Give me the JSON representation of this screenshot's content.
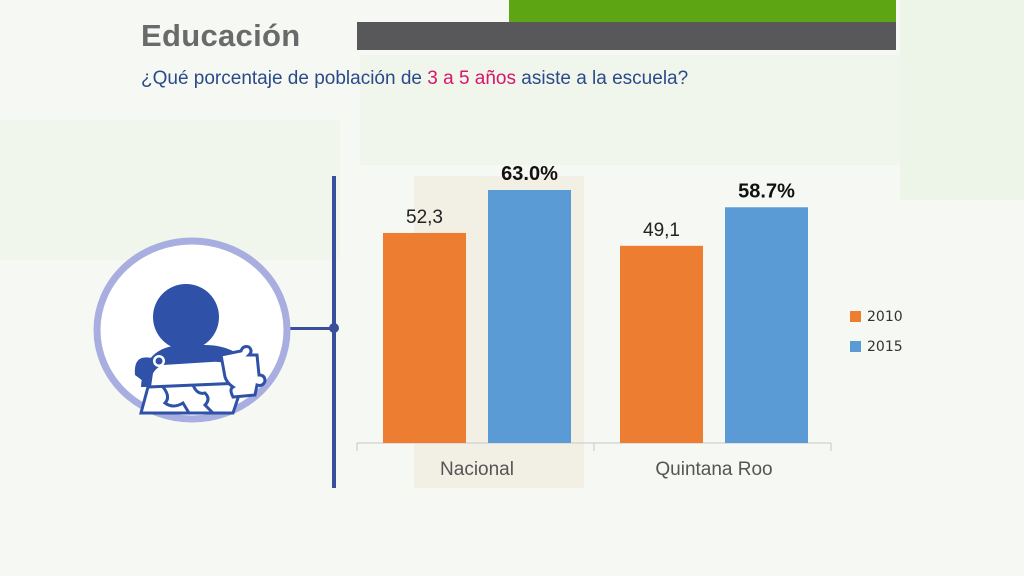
{
  "header": {
    "title": "Educación",
    "subtitle_pre": "¿Qué porcentaje de población de ",
    "subtitle_highlight": "3 a 5 años",
    "subtitle_post": " asiste a la escuela?"
  },
  "icon": {
    "name": "child-puzzle-icon"
  },
  "colors": {
    "accent_green": "#5ea513",
    "bar_gray": "#58585a",
    "title": "#6a6a6c",
    "subtitle": "#2b4a8a",
    "highlight": "#d5176a",
    "line": "#3a4f9c",
    "series_2010": "#ed7d31",
    "series_2015": "#5b9bd5"
  },
  "chart_data": {
    "type": "bar",
    "categories": [
      "Nacional",
      "Quintana Roo"
    ],
    "series": [
      {
        "name": "2010",
        "values": [
          52.3,
          49.1
        ],
        "labels": [
          "52,3",
          "49,1"
        ]
      },
      {
        "name": "2015",
        "values": [
          63.0,
          58.7
        ],
        "labels": [
          "63.0%",
          "58.7%"
        ]
      }
    ],
    "ylim": [
      0,
      70
    ],
    "grid": false,
    "legend": "right"
  }
}
